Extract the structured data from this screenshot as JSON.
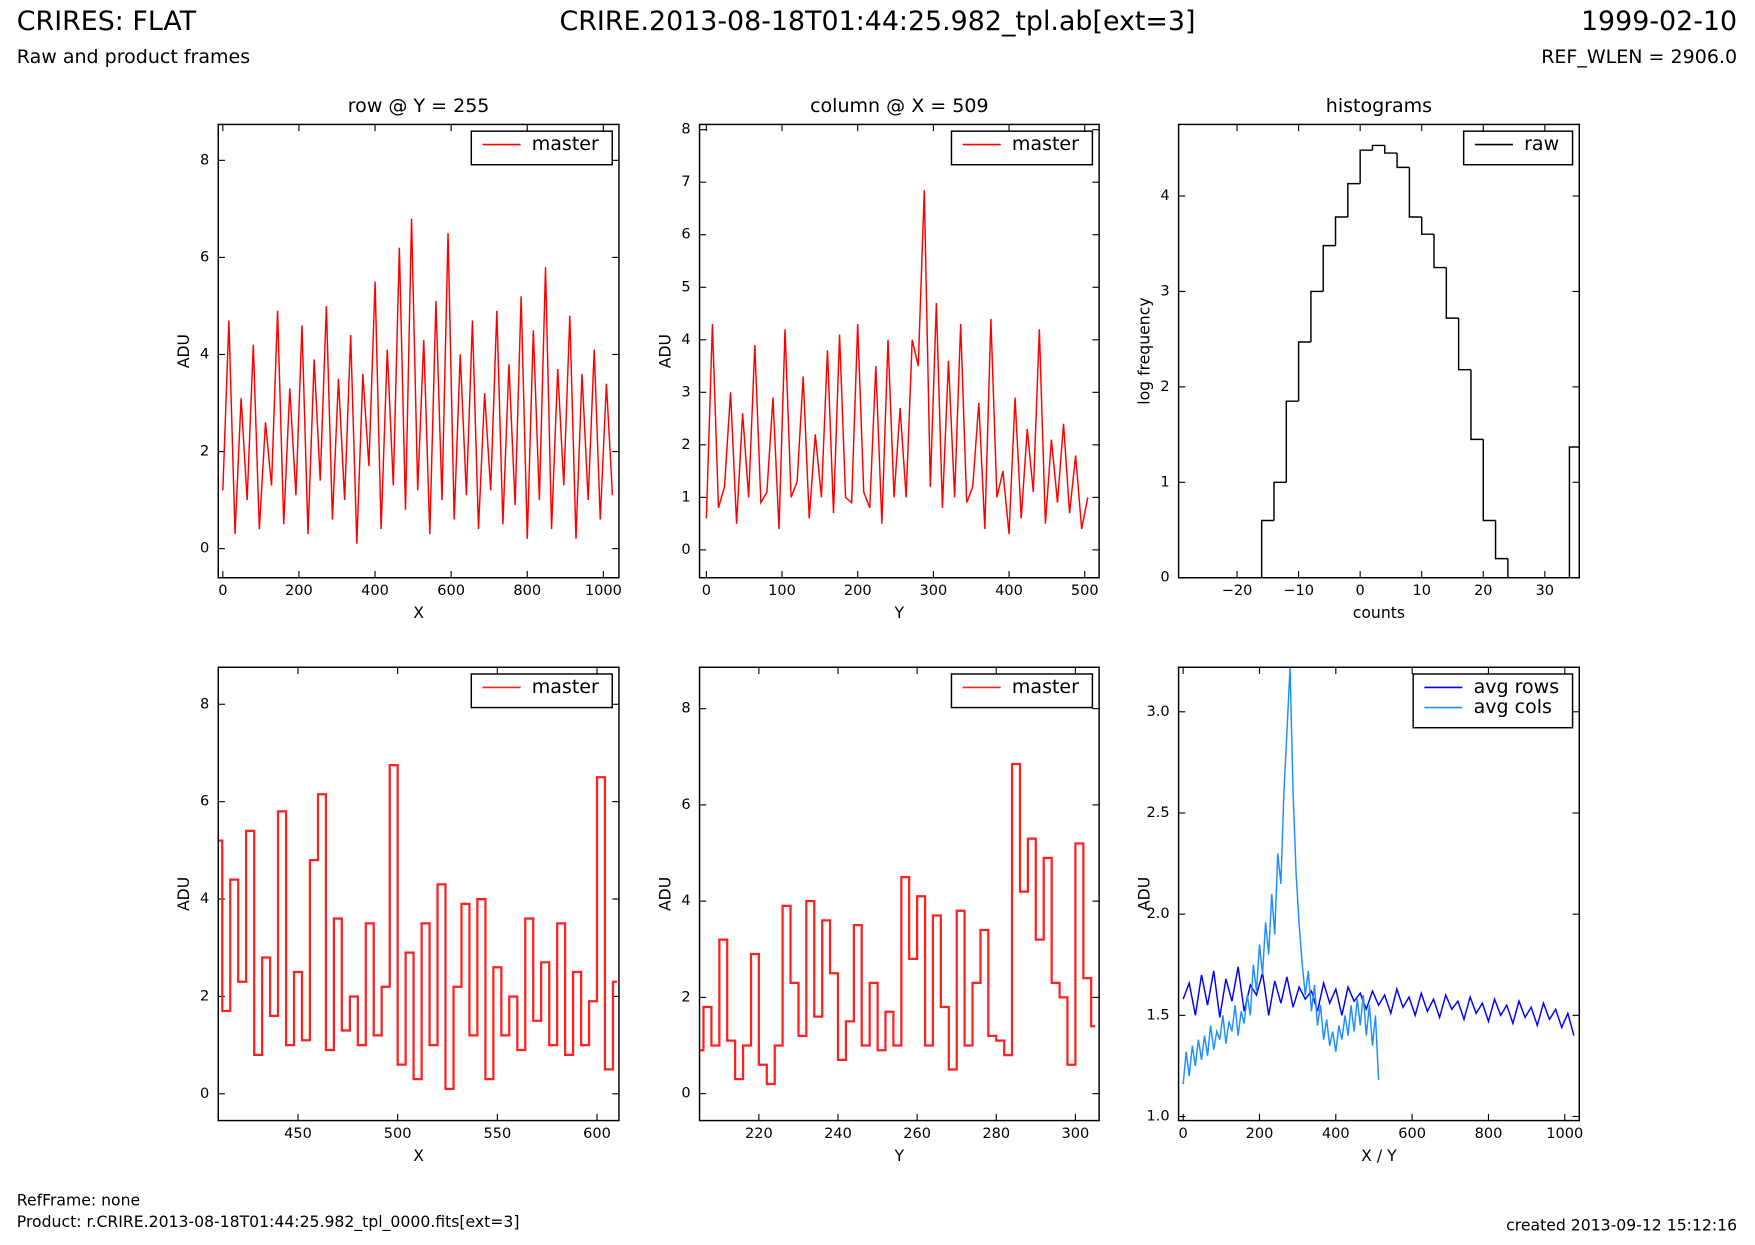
{
  "header": {
    "left_title": "CRIRES: FLAT",
    "left_subtitle": "Raw and product frames",
    "center_title": "CRIRE.2013-08-18T01:44:25.982_tpl.ab[ext=3]",
    "right_title": "1999-02-10",
    "right_subtitle": "REF_WLEN = 2906.0"
  },
  "footer": {
    "ref_frame": "RefFrame: none",
    "product": "Product: r.CRIRE.2013-08-18T01:44:25.982_tpl_0000.fits[ext=3]",
    "created": "created 2013-09-12 15:12:16"
  },
  "chart_data": [
    {
      "type": "line",
      "title": "row @ Y = 255",
      "x_label": "X",
      "y_label": "ADU",
      "legend": "upper right",
      "xlim": [
        -12,
        1041
      ],
      "ylim": [
        -0.6,
        8.74
      ],
      "xticks": [
        0,
        200,
        400,
        600,
        800,
        1000
      ],
      "yticks": [
        0,
        2,
        4,
        6,
        8
      ],
      "x": [
        0,
        16,
        32,
        48,
        64,
        80,
        96,
        112,
        128,
        144,
        160,
        176,
        192,
        208,
        224,
        240,
        256,
        272,
        288,
        304,
        320,
        336,
        352,
        368,
        384,
        400,
        416,
        432,
        448,
        464,
        480,
        496,
        512,
        528,
        544,
        560,
        576,
        592,
        608,
        624,
        640,
        656,
        672,
        688,
        704,
        720,
        736,
        752,
        768,
        784,
        800,
        816,
        832,
        848,
        864,
        880,
        896,
        912,
        928,
        944,
        960,
        976,
        992,
        1008,
        1024
      ],
      "series": [
        {
          "name": "master",
          "color": "#ff0000",
          "values": [
            1.2,
            4.7,
            0.3,
            3.1,
            1.0,
            4.2,
            0.4,
            2.6,
            1.3,
            4.9,
            0.5,
            3.3,
            1.1,
            4.6,
            0.3,
            3.9,
            1.4,
            5.0,
            0.6,
            3.5,
            1.0,
            4.4,
            0.1,
            3.6,
            1.7,
            5.5,
            0.4,
            4.1,
            1.3,
            6.2,
            0.8,
            6.8,
            1.2,
            4.3,
            0.3,
            5.1,
            1.0,
            6.5,
            0.6,
            4.0,
            1.1,
            4.7,
            0.4,
            3.2,
            1.2,
            4.9,
            0.5,
            3.8,
            0.9,
            5.2,
            0.2,
            4.5,
            1.0,
            5.8,
            0.4,
            3.7,
            1.3,
            4.8,
            0.2,
            3.6,
            1.0,
            4.1,
            0.6,
            3.4,
            1.1
          ]
        }
      ]
    },
    {
      "type": "line",
      "title": "column @ X = 509",
      "x_label": "Y",
      "y_label": "ADU",
      "legend": "upper right",
      "xlim": [
        -9,
        519
      ],
      "ylim": [
        -0.53,
        8.1
      ],
      "xticks": [
        0,
        100,
        200,
        300,
        400,
        500
      ],
      "yticks": [
        0,
        1,
        2,
        3,
        4,
        5,
        6,
        7,
        8
      ],
      "x": [
        0,
        8,
        16,
        24,
        32,
        40,
        48,
        56,
        64,
        72,
        80,
        88,
        96,
        104,
        112,
        120,
        128,
        136,
        144,
        152,
        160,
        168,
        176,
        184,
        192,
        200,
        208,
        216,
        224,
        232,
        240,
        248,
        256,
        264,
        272,
        280,
        288,
        296,
        304,
        312,
        320,
        328,
        336,
        344,
        352,
        360,
        368,
        376,
        384,
        392,
        400,
        408,
        416,
        424,
        432,
        440,
        448,
        456,
        464,
        472,
        480,
        488,
        496,
        504
      ],
      "series": [
        {
          "name": "master",
          "color": "#ff0000",
          "values": [
            0.6,
            4.3,
            0.8,
            1.2,
            3.0,
            0.5,
            2.6,
            1.0,
            3.9,
            0.9,
            1.1,
            2.9,
            0.4,
            4.2,
            1.0,
            1.3,
            3.3,
            0.6,
            2.2,
            1.0,
            3.8,
            0.7,
            4.1,
            1.0,
            0.9,
            4.3,
            1.1,
            0.8,
            3.5,
            0.5,
            4.0,
            1.0,
            2.7,
            1.0,
            4.0,
            3.5,
            6.85,
            1.2,
            4.7,
            0.8,
            3.6,
            1.0,
            4.3,
            0.9,
            1.2,
            2.8,
            0.4,
            4.4,
            1.0,
            1.5,
            0.3,
            2.9,
            0.6,
            2.3,
            1.1,
            4.2,
            0.5,
            2.1,
            0.9,
            2.4,
            0.7,
            1.8,
            0.4,
            1.0
          ]
        }
      ]
    },
    {
      "type": "histogram",
      "title": "histograms",
      "x_label": "counts",
      "y_label": "log frequency",
      "legend": "upper right",
      "xlim": [
        -29.5,
        35.6
      ],
      "ylim": [
        0,
        4.75
      ],
      "xticks": [
        {
          "value": -20,
          "label": "−20"
        },
        {
          "value": -10,
          "label": "−10"
        },
        0,
        10,
        20,
        30
      ],
      "yticks": [
        0,
        1,
        2,
        3,
        4
      ],
      "bins": [
        -16,
        -14,
        -12,
        -10,
        -8,
        -6,
        -4,
        -2,
        0,
        2,
        4,
        6,
        8,
        10,
        12,
        14,
        16,
        18,
        20,
        22,
        24,
        26,
        28,
        30,
        32,
        34,
        36
      ],
      "series": [
        {
          "name": "raw",
          "color": "#000000",
          "values": [
            0.6,
            1.0,
            1.85,
            2.47,
            3.0,
            3.48,
            3.78,
            4.13,
            4.48,
            4.53,
            4.45,
            4.3,
            3.78,
            3.6,
            3.25,
            2.72,
            2.18,
            1.45,
            0.6,
            0.2,
            0,
            0,
            0,
            0,
            0,
            1.37
          ]
        }
      ]
    },
    {
      "type": "step",
      "x_label": "X",
      "y_label": "ADU",
      "legend": "upper right",
      "xlim": [
        410,
        611
      ],
      "ylim": [
        -0.55,
        8.76
      ],
      "xticks": [
        450,
        500,
        550,
        600
      ],
      "yticks": [
        0,
        2,
        4,
        6,
        8
      ],
      "x": [
        410,
        414,
        418,
        422,
        426,
        430,
        434,
        438,
        442,
        446,
        450,
        454,
        458,
        462,
        466,
        470,
        474,
        478,
        482,
        486,
        490,
        494,
        498,
        502,
        506,
        510,
        514,
        518,
        522,
        526,
        530,
        534,
        538,
        542,
        546,
        550,
        554,
        558,
        562,
        566,
        570,
        574,
        578,
        582,
        586,
        590,
        594,
        598,
        602,
        606,
        610
      ],
      "series": [
        {
          "name": "master",
          "color": "#ff2020",
          "values": [
            5.2,
            1.7,
            4.4,
            2.3,
            5.4,
            0.8,
            2.8,
            1.6,
            5.8,
            1.0,
            2.5,
            1.1,
            4.8,
            6.15,
            0.9,
            3.6,
            1.3,
            2.0,
            1.0,
            3.5,
            1.2,
            2.2,
            6.75,
            0.6,
            2.9,
            0.3,
            3.5,
            1.0,
            4.3,
            0.1,
            2.2,
            3.9,
            1.2,
            4.0,
            0.3,
            2.6,
            1.2,
            2.0,
            0.9,
            3.6,
            1.5,
            2.7,
            1.0,
            3.5,
            0.8,
            2.5,
            1.0,
            1.9,
            6.5,
            0.5,
            2.3
          ]
        }
      ]
    },
    {
      "type": "step",
      "x_label": "Y",
      "y_label": "ADU",
      "legend": "upper right",
      "xlim": [
        205,
        306
      ],
      "ylim": [
        -0.56,
        8.86
      ],
      "xticks": [
        220,
        240,
        260,
        280,
        300
      ],
      "yticks": [
        0,
        2,
        4,
        6,
        8
      ],
      "x": [
        205,
        207,
        209,
        211,
        213,
        215,
        217,
        219,
        221,
        223,
        225,
        227,
        229,
        231,
        233,
        235,
        237,
        239,
        241,
        243,
        245,
        247,
        249,
        251,
        253,
        255,
        257,
        259,
        261,
        263,
        265,
        267,
        269,
        271,
        273,
        275,
        277,
        279,
        281,
        283,
        285,
        287,
        289,
        291,
        293,
        295,
        297,
        299,
        301,
        303,
        305
      ],
      "series": [
        {
          "name": "master",
          "color": "#ff2020",
          "values": [
            0.9,
            1.8,
            1.0,
            3.2,
            1.1,
            0.3,
            1.0,
            2.9,
            0.6,
            0.2,
            1.0,
            3.9,
            2.3,
            1.2,
            4.0,
            1.6,
            3.6,
            2.5,
            0.7,
            1.5,
            3.5,
            1.0,
            2.3,
            0.9,
            1.7,
            1.0,
            4.5,
            2.8,
            4.1,
            1.0,
            3.7,
            1.8,
            0.5,
            3.8,
            1.0,
            2.3,
            3.4,
            1.2,
            1.1,
            0.8,
            6.85,
            4.2,
            5.3,
            3.2,
            4.9,
            2.3,
            2.0,
            0.6,
            5.2,
            2.4,
            1.4
          ]
        }
      ]
    },
    {
      "type": "line",
      "x_label": "X / Y",
      "y_label": "ADU",
      "legend": "upper right",
      "xlim": [
        -12,
        1038
      ],
      "ylim": [
        0.98,
        3.22
      ],
      "xticks": [
        0,
        200,
        400,
        600,
        800,
        1000
      ],
      "yticks": [
        {
          "value": 1,
          "label": "1.0"
        },
        1.5,
        {
          "value": 2,
          "label": "2.0"
        },
        2.5,
        {
          "value": 3,
          "label": "3.0"
        }
      ],
      "series": [
        {
          "name": "avg rows",
          "color": "#0000ff",
          "x": [
            0,
            16,
            32,
            48,
            64,
            80,
            96,
            112,
            128,
            144,
            160,
            176,
            192,
            208,
            224,
            240,
            256,
            272,
            288,
            304,
            320,
            336,
            352,
            368,
            384,
            400,
            416,
            432,
            448,
            464,
            480,
            496,
            512,
            528,
            544,
            560,
            576,
            592,
            608,
            624,
            640,
            656,
            672,
            688,
            704,
            720,
            736,
            752,
            768,
            784,
            800,
            816,
            832,
            848,
            864,
            880,
            896,
            912,
            928,
            944,
            960,
            976,
            992,
            1008,
            1024
          ],
          "values": [
            1.58,
            1.66,
            1.5,
            1.7,
            1.55,
            1.72,
            1.49,
            1.68,
            1.57,
            1.74,
            1.52,
            1.65,
            1.6,
            1.71,
            1.5,
            1.67,
            1.56,
            1.69,
            1.54,
            1.64,
            1.58,
            1.62,
            1.52,
            1.66,
            1.56,
            1.63,
            1.5,
            1.64,
            1.57,
            1.61,
            1.53,
            1.62,
            1.55,
            1.6,
            1.51,
            1.63,
            1.54,
            1.59,
            1.5,
            1.61,
            1.52,
            1.58,
            1.49,
            1.6,
            1.53,
            1.57,
            1.48,
            1.59,
            1.51,
            1.56,
            1.47,
            1.58,
            1.5,
            1.55,
            1.46,
            1.57,
            1.49,
            1.54,
            1.45,
            1.56,
            1.48,
            1.53,
            1.44,
            1.51,
            1.4
          ]
        },
        {
          "name": "avg cols",
          "color": "#1e8fff",
          "x": [
            0,
            8,
            16,
            24,
            32,
            40,
            48,
            56,
            64,
            72,
            80,
            88,
            96,
            104,
            112,
            120,
            128,
            136,
            144,
            152,
            160,
            168,
            176,
            184,
            192,
            200,
            208,
            216,
            224,
            232,
            240,
            248,
            256,
            264,
            272,
            280,
            288,
            296,
            304,
            312,
            320,
            328,
            336,
            344,
            352,
            360,
            368,
            376,
            384,
            392,
            400,
            408,
            416,
            424,
            432,
            440,
            448,
            456,
            464,
            472,
            480,
            488,
            496,
            504,
            512
          ],
          "values": [
            1.16,
            1.32,
            1.2,
            1.35,
            1.25,
            1.38,
            1.28,
            1.4,
            1.3,
            1.45,
            1.33,
            1.42,
            1.38,
            1.5,
            1.36,
            1.47,
            1.42,
            1.55,
            1.4,
            1.52,
            1.46,
            1.6,
            1.5,
            1.75,
            1.62,
            1.85,
            1.7,
            1.96,
            1.8,
            2.1,
            1.9,
            2.3,
            2.15,
            2.6,
            2.9,
            3.22,
            2.6,
            2.2,
            1.95,
            1.75,
            1.6,
            1.72,
            1.52,
            1.65,
            1.45,
            1.55,
            1.38,
            1.48,
            1.35,
            1.42,
            1.32,
            1.45,
            1.38,
            1.5,
            1.4,
            1.55,
            1.42,
            1.58,
            1.45,
            1.6,
            1.4,
            1.55,
            1.35,
            1.5,
            1.18
          ]
        }
      ]
    }
  ]
}
